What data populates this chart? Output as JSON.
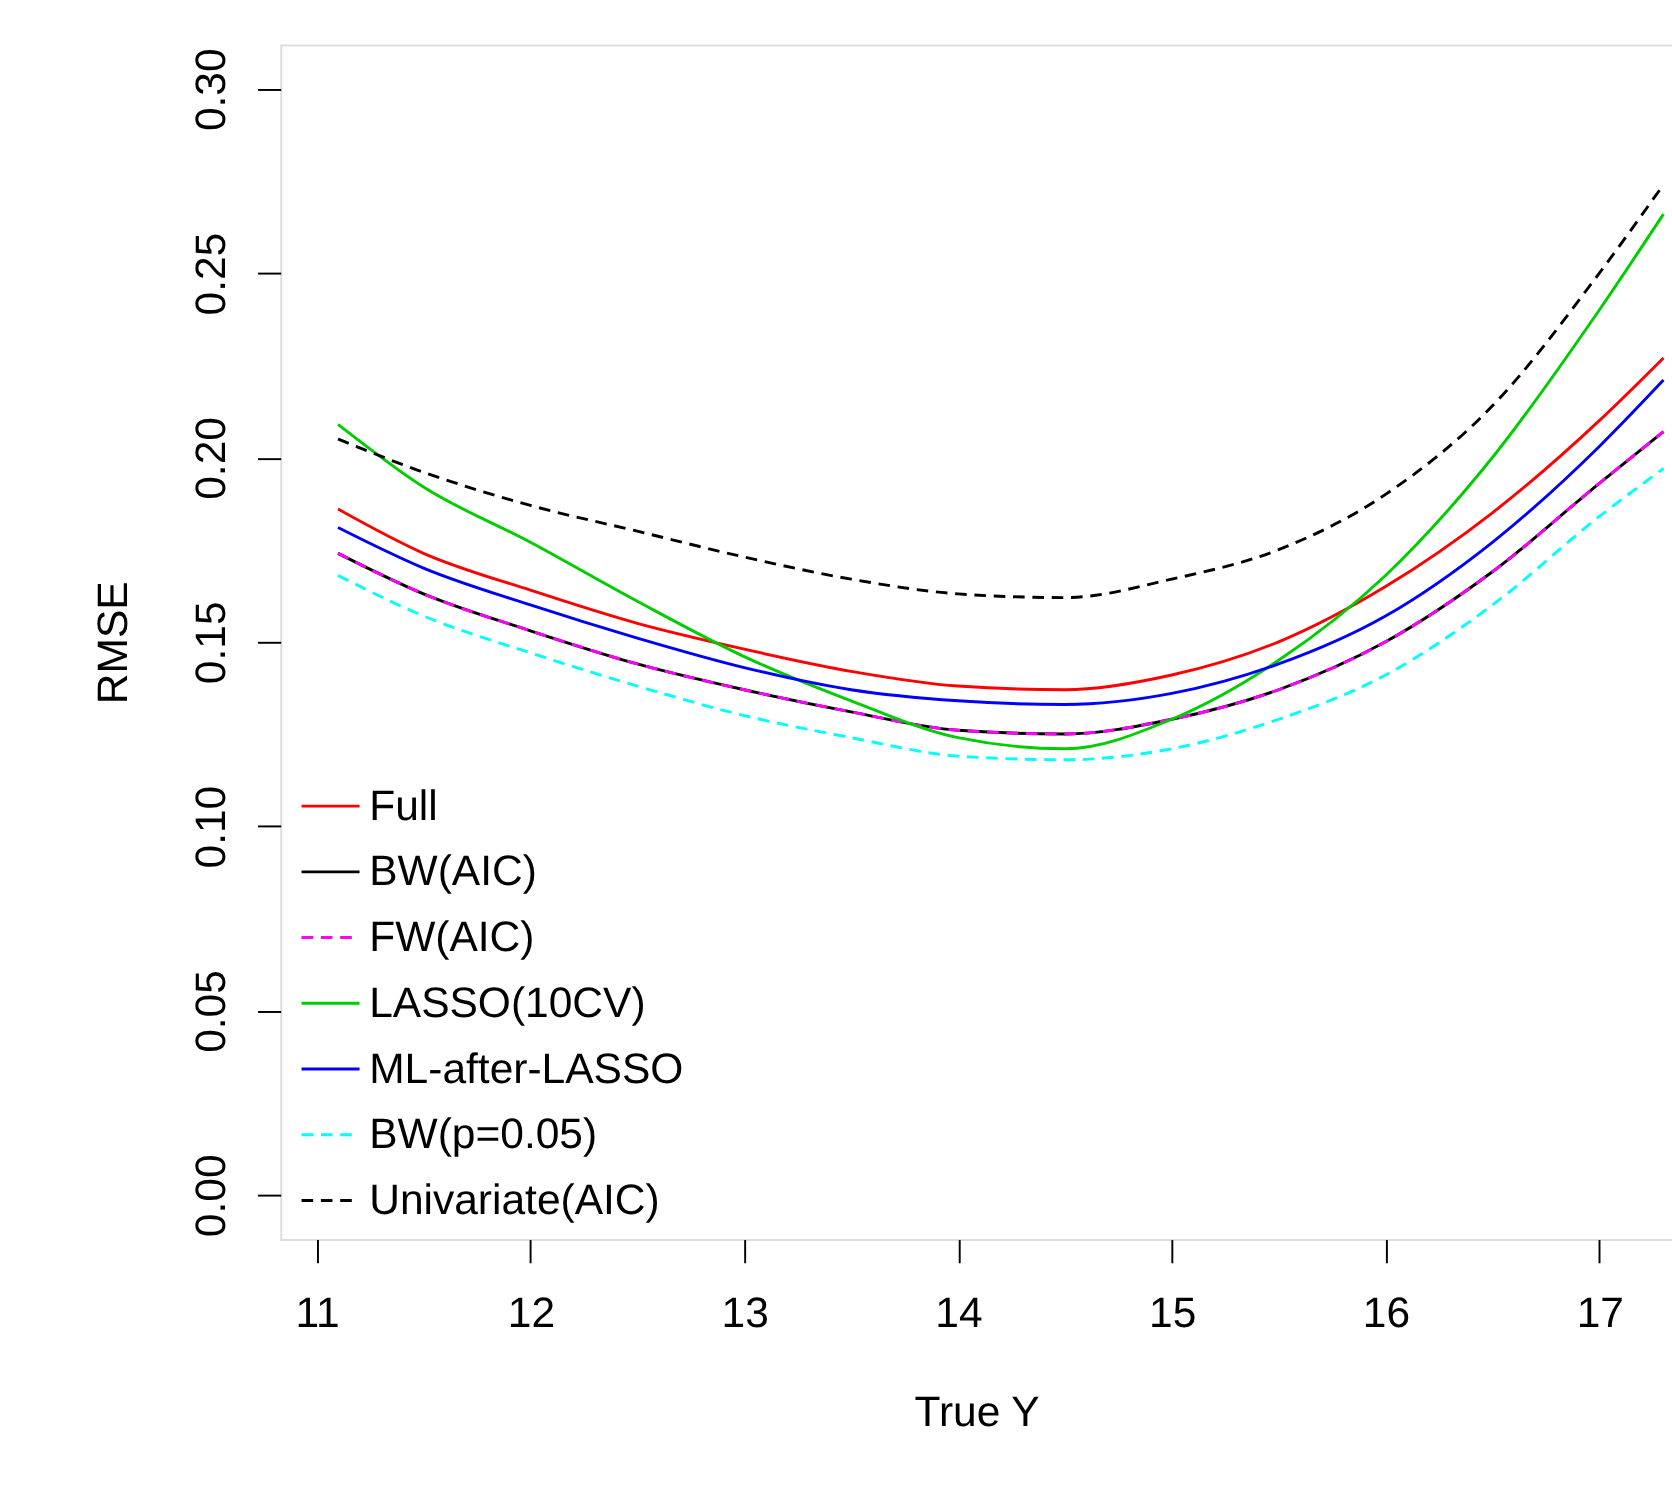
{
  "chart_data": {
    "type": "line",
    "xlabel": "True Y",
    "ylabel": "RMSE",
    "x": [
      11.1,
      11.5,
      12,
      12.5,
      13,
      13.5,
      14,
      14.5,
      15,
      15.5,
      16,
      16.5,
      17,
      17.3
    ],
    "xlim": [
      10.83,
      17.34
    ],
    "xticks": [
      11,
      12,
      13,
      14,
      15,
      16,
      17
    ],
    "ylim": [
      -0.012,
      0.312
    ],
    "yticks": [
      {
        "value": 0,
        "label": "0.00"
      },
      0.05,
      {
        "value": 0.1,
        "label": "0.10"
      },
      0.15,
      {
        "value": 0.2,
        "label": "0.20"
      },
      0.25,
      {
        "value": 0.3,
        "label": "0.30"
      }
    ],
    "grid": false,
    "legend": "bottom left",
    "marker": "none",
    "series": [
      {
        "name": "Full",
        "color": "#ff0000",
        "line_style": "solid",
        "values": [
          0.186,
          0.174,
          0.164,
          0.155,
          0.148,
          0.142,
          0.138,
          0.137,
          0.141,
          0.15,
          0.165,
          0.185,
          0.21,
          0.227
        ]
      },
      {
        "name": "BW(AIC)",
        "color": "#000000",
        "line_style": "solid",
        "values": [
          0.174,
          0.163,
          0.153,
          0.144,
          0.137,
          0.131,
          0.126,
          0.125,
          0.129,
          0.137,
          0.15,
          0.169,
          0.193,
          0.207
        ]
      },
      {
        "name": "FW(AIC)",
        "color": "#ff00ff",
        "line_style": "dashed",
        "values": [
          0.174,
          0.163,
          0.153,
          0.144,
          0.137,
          0.131,
          0.126,
          0.125,
          0.129,
          0.137,
          0.15,
          0.169,
          0.193,
          0.207
        ]
      },
      {
        "name": "LASSO(10CV)",
        "color": "#00cd00",
        "line_style": "solid",
        "values": [
          0.209,
          0.192,
          0.177,
          0.161,
          0.146,
          0.134,
          0.124,
          0.121,
          0.129,
          0.145,
          0.168,
          0.2,
          0.24,
          0.266
        ]
      },
      {
        "name": "ML-after-LASSO",
        "color": "#0000ff",
        "line_style": "solid",
        "values": [
          0.181,
          0.17,
          0.16,
          0.151,
          0.143,
          0.137,
          0.134,
          0.133,
          0.136,
          0.144,
          0.157,
          0.177,
          0.203,
          0.221
        ]
      },
      {
        "name": "BW(p=0.05)",
        "color": "#00ffff",
        "line_style": "dashed",
        "values": [
          0.168,
          0.157,
          0.147,
          0.138,
          0.13,
          0.124,
          0.119,
          0.118,
          0.121,
          0.129,
          0.141,
          0.16,
          0.184,
          0.197
        ]
      },
      {
        "name": "Univariate(AIC)",
        "color": "#000000",
        "line_style": "dashed",
        "values": [
          0.205,
          0.196,
          0.187,
          0.18,
          0.173,
          0.167,
          0.163,
          0.162,
          0.167,
          0.175,
          0.19,
          0.214,
          0.25,
          0.274
        ]
      }
    ]
  }
}
